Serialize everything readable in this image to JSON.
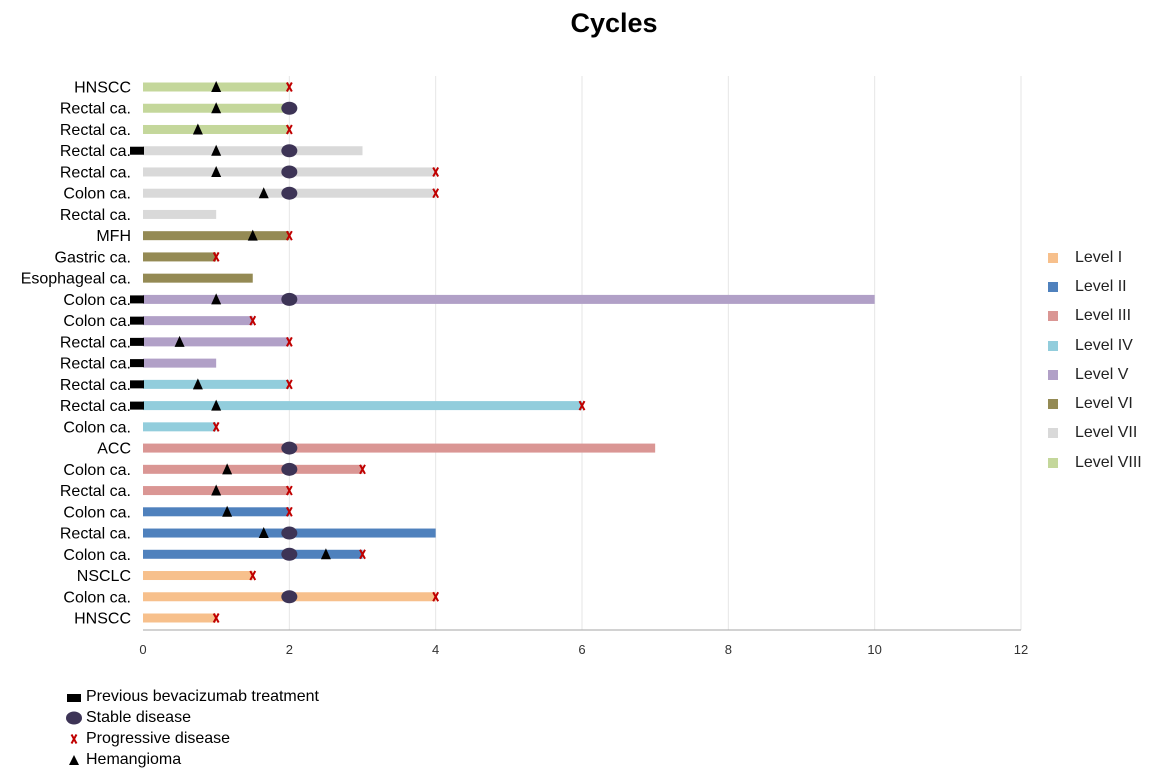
{
  "chart_data": {
    "type": "bar",
    "orientation": "horizontal",
    "title": "Cycles",
    "xlabel": "",
    "ylabel": "",
    "xlim": [
      0,
      12
    ],
    "x_ticks": [
      0,
      2,
      4,
      6,
      8,
      10,
      12
    ],
    "grid": "vertical",
    "legend_position": "right",
    "levels": [
      {
        "name": "Level I",
        "color": "#F7C08C"
      },
      {
        "name": "Level II",
        "color": "#4F81BD"
      },
      {
        "name": "Level III",
        "color": "#DA9694"
      },
      {
        "name": "Level IV",
        "color": "#92CDDC"
      },
      {
        "name": "Level V",
        "color": "#B1A0C7"
      },
      {
        "name": "Level VI",
        "color": "#948A54"
      },
      {
        "name": "Level VII",
        "color": "#D9D9D9"
      },
      {
        "name": "Level VIII",
        "color": "#C4D79B"
      }
    ],
    "rows": [
      {
        "label": "HNSCC",
        "level": 8,
        "value": 2,
        "previous_bev": false,
        "stable": null,
        "progressive": 2,
        "hemangioma": 1
      },
      {
        "label": "Rectal ca.",
        "level": 8,
        "value": 2,
        "previous_bev": false,
        "stable": 2,
        "progressive": null,
        "hemangioma": 1
      },
      {
        "label": "Rectal ca.",
        "level": 8,
        "value": 2,
        "previous_bev": false,
        "stable": null,
        "progressive": 2,
        "hemangioma": 0.75
      },
      {
        "label": "Rectal ca.",
        "level": 7,
        "value": 3,
        "previous_bev": true,
        "stable": 2,
        "progressive": null,
        "hemangioma": 1
      },
      {
        "label": "Rectal ca.",
        "level": 7,
        "value": 4,
        "previous_bev": false,
        "stable": 2,
        "progressive": 4,
        "hemangioma": 1
      },
      {
        "label": "Colon ca.",
        "level": 7,
        "value": 4,
        "previous_bev": false,
        "stable": 2,
        "progressive": 4,
        "hemangioma": 1.65
      },
      {
        "label": "Rectal ca.",
        "level": 7,
        "value": 1,
        "previous_bev": false,
        "stable": null,
        "progressive": null,
        "hemangioma": null
      },
      {
        "label": "MFH",
        "level": 6,
        "value": 2,
        "previous_bev": false,
        "stable": null,
        "progressive": 2,
        "hemangioma": 1.5
      },
      {
        "label": "Gastric ca.",
        "level": 6,
        "value": 1,
        "previous_bev": false,
        "stable": null,
        "progressive": 1,
        "hemangioma": null
      },
      {
        "label": "Esophageal ca.",
        "level": 6,
        "value": 1.5,
        "previous_bev": false,
        "stable": null,
        "progressive": null,
        "hemangioma": null
      },
      {
        "label": "Colon ca.",
        "level": 5,
        "value": 10,
        "previous_bev": true,
        "stable": 2,
        "progressive": null,
        "hemangioma": 1
      },
      {
        "label": "Colon ca.",
        "level": 5,
        "value": 1.5,
        "previous_bev": true,
        "stable": null,
        "progressive": 1.5,
        "hemangioma": null
      },
      {
        "label": "Rectal ca.",
        "level": 5,
        "value": 2,
        "previous_bev": true,
        "stable": null,
        "progressive": 2,
        "hemangioma": 0.5
      },
      {
        "label": "Rectal ca.",
        "level": 5,
        "value": 1,
        "previous_bev": true,
        "stable": null,
        "progressive": null,
        "hemangioma": null
      },
      {
        "label": "Rectal ca.",
        "level": 4,
        "value": 2,
        "previous_bev": true,
        "stable": null,
        "progressive": 2,
        "hemangioma": 0.75
      },
      {
        "label": "Rectal ca.",
        "level": 4,
        "value": 6,
        "previous_bev": true,
        "stable": null,
        "progressive": 6,
        "hemangioma": 1
      },
      {
        "label": "Colon ca.",
        "level": 4,
        "value": 1,
        "previous_bev": false,
        "stable": null,
        "progressive": 1,
        "hemangioma": null
      },
      {
        "label": "ACC",
        "level": 3,
        "value": 7,
        "previous_bev": false,
        "stable": 2,
        "progressive": null,
        "hemangioma": null
      },
      {
        "label": "Colon ca.",
        "level": 3,
        "value": 3,
        "previous_bev": false,
        "stable": 2,
        "progressive": 3,
        "hemangioma": 1.15
      },
      {
        "label": "Rectal ca.",
        "level": 3,
        "value": 2,
        "previous_bev": false,
        "stable": null,
        "progressive": 2,
        "hemangioma": 1
      },
      {
        "label": "Colon ca.",
        "level": 2,
        "value": 2,
        "previous_bev": false,
        "stable": null,
        "progressive": 2,
        "hemangioma": 1.15
      },
      {
        "label": "Rectal ca.",
        "level": 2,
        "value": 4,
        "previous_bev": false,
        "stable": 2,
        "progressive": null,
        "hemangioma": 1.65
      },
      {
        "label": "Colon ca.",
        "level": 2,
        "value": 3,
        "previous_bev": false,
        "stable": 2,
        "progressive": 3,
        "hemangioma": 2.5
      },
      {
        "label": "NSCLC",
        "level": 1,
        "value": 1.5,
        "previous_bev": false,
        "stable": null,
        "progressive": 1.5,
        "hemangioma": null
      },
      {
        "label": "Colon ca.",
        "level": 1,
        "value": 4,
        "previous_bev": false,
        "stable": 2,
        "progressive": 4,
        "hemangioma": null
      },
      {
        "label": "HNSCC",
        "level": 1,
        "value": 1,
        "previous_bev": false,
        "stable": null,
        "progressive": 1,
        "hemangioma": null
      }
    ],
    "marker_legend": [
      {
        "symbol": "rect",
        "label": "Previous bevacizumab treatment"
      },
      {
        "symbol": "ellipse",
        "label": "Stable disease"
      },
      {
        "symbol": "cross",
        "label": "Progressive disease"
      },
      {
        "symbol": "triangle",
        "label": "Hemangioma"
      }
    ]
  }
}
